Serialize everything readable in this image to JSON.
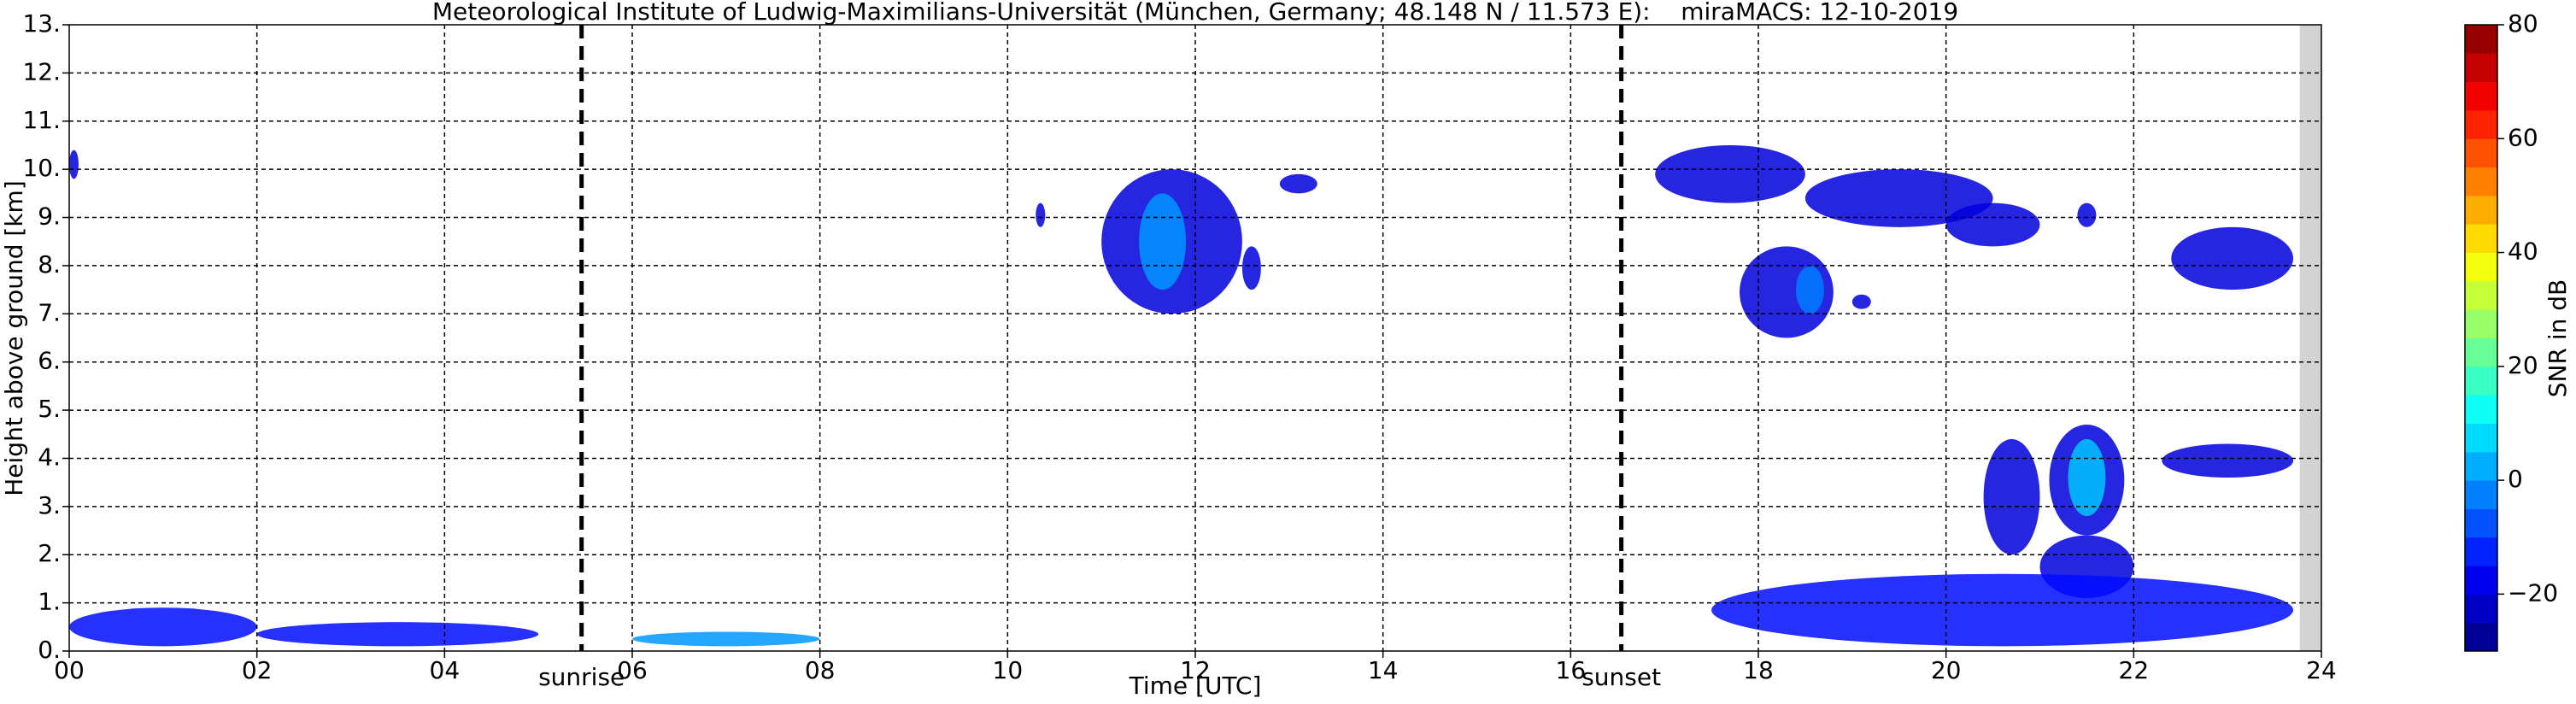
{
  "chart_data": {
    "type": "heatmap",
    "title": "Meteorological Institute of Ludwig-Maximilians-Universität (München, Germany; 48.148 N / 11.573 E):    miraMACS: 12-10-2019",
    "x_label": "Time [UTC]",
    "y_label": "Height above ground [km]",
    "xlim": [
      0,
      24
    ],
    "ylim": [
      0,
      13
    ],
    "xticks": [
      {
        "value": 0,
        "label": "00"
      },
      {
        "value": 2,
        "label": "02"
      },
      {
        "value": 4,
        "label": "04"
      },
      {
        "value": 6,
        "label": "06"
      },
      {
        "value": 8,
        "label": "08"
      },
      {
        "value": 10,
        "label": "10"
      },
      {
        "value": 12,
        "label": "12"
      },
      {
        "value": 14,
        "label": "14"
      },
      {
        "value": 16,
        "label": "16"
      },
      {
        "value": 18,
        "label": "18"
      },
      {
        "value": 20,
        "label": "20"
      },
      {
        "value": 22,
        "label": "22"
      },
      {
        "value": 24,
        "label": "24"
      }
    ],
    "yticks": [
      {
        "value": 0,
        "label": "0."
      },
      {
        "value": 1,
        "label": "1."
      },
      {
        "value": 2,
        "label": "2."
      },
      {
        "value": 3,
        "label": "3."
      },
      {
        "value": 4,
        "label": "4."
      },
      {
        "value": 5,
        "label": "5."
      },
      {
        "value": 6,
        "label": "6."
      },
      {
        "value": 7,
        "label": "7."
      },
      {
        "value": 8,
        "label": "8."
      },
      {
        "value": 9,
        "label": "9."
      },
      {
        "value": 10,
        "label": "10."
      },
      {
        "value": 11,
        "label": "11."
      },
      {
        "value": 12,
        "label": "12."
      },
      {
        "value": 13,
        "label": "13."
      }
    ],
    "grid": true,
    "colormap": "jet",
    "colorbar": {
      "label": "SNR in dB",
      "lim": [
        -30,
        80
      ],
      "ticks": [
        {
          "value": -20,
          "label": "−20"
        },
        0,
        20,
        40,
        60,
        80
      ]
    },
    "no_data": [
      23.77,
      24
    ],
    "markers": [
      {
        "x": 5.46,
        "label": "sunrise"
      },
      {
        "x": 16.54,
        "label": "sunset"
      }
    ],
    "echoes": [
      {
        "x": [
          11.0,
          12.5
        ],
        "y": [
          7.0,
          10.0
        ],
        "snr": -20
      },
      {
        "x": [
          11.4,
          11.9
        ],
        "y": [
          7.5,
          9.5
        ],
        "snr": 0
      },
      {
        "x": [
          10.3,
          10.4
        ],
        "y": [
          8.8,
          9.3
        ],
        "snr": -20
      },
      {
        "x": [
          12.5,
          12.7
        ],
        "y": [
          7.5,
          8.4
        ],
        "snr": -20
      },
      {
        "x": [
          12.9,
          13.3
        ],
        "y": [
          9.5,
          9.9
        ],
        "snr": -20
      },
      {
        "x": [
          0,
          0.1
        ],
        "y": [
          9.8,
          10.4
        ],
        "snr": -20
      },
      {
        "x": [
          16.9,
          18.5
        ],
        "y": [
          9.3,
          10.5
        ],
        "snr": -20
      },
      {
        "x": [
          18.5,
          20.5
        ],
        "y": [
          8.8,
          10.0
        ],
        "snr": -20
      },
      {
        "x": [
          20.0,
          21.0
        ],
        "y": [
          8.4,
          9.3
        ],
        "snr": -20
      },
      {
        "x": [
          17.8,
          18.8
        ],
        "y": [
          6.5,
          8.4
        ],
        "snr": -20
      },
      {
        "x": [
          18.4,
          18.7
        ],
        "y": [
          7.0,
          8.0
        ],
        "snr": -3
      },
      {
        "x": [
          19.0,
          19.2
        ],
        "y": [
          7.1,
          7.4
        ],
        "snr": -20
      },
      {
        "x": [
          21.4,
          21.6
        ],
        "y": [
          8.8,
          9.3
        ],
        "snr": -20
      },
      {
        "x": [
          22.4,
          23.7
        ],
        "y": [
          7.5,
          8.8
        ],
        "snr": -20
      },
      {
        "x": [
          20.4,
          21.0
        ],
        "y": [
          2.0,
          4.4
        ],
        "snr": -20
      },
      {
        "x": [
          21.1,
          21.9
        ],
        "y": [
          2.4,
          4.7
        ],
        "snr": -20
      },
      {
        "x": [
          21.3,
          21.7
        ],
        "y": [
          2.8,
          4.4
        ],
        "snr": 5
      },
      {
        "x": [
          21.0,
          22.0
        ],
        "y": [
          1.1,
          2.4
        ],
        "snr": -20
      },
      {
        "x": [
          22.3,
          23.7
        ],
        "y": [
          3.6,
          4.3
        ],
        "snr": -20
      },
      {
        "x": [
          0,
          2.0
        ],
        "y": [
          0.1,
          0.9
        ],
        "snr": -15
      },
      {
        "x": [
          2.0,
          5.0
        ],
        "y": [
          0.1,
          0.6
        ],
        "snr": -15
      },
      {
        "x": [
          6.0,
          8.0
        ],
        "y": [
          0.1,
          0.4
        ],
        "snr": 0
      },
      {
        "x": [
          17.5,
          23.7
        ],
        "y": [
          0.1,
          1.6
        ],
        "snr": -15
      }
    ]
  }
}
